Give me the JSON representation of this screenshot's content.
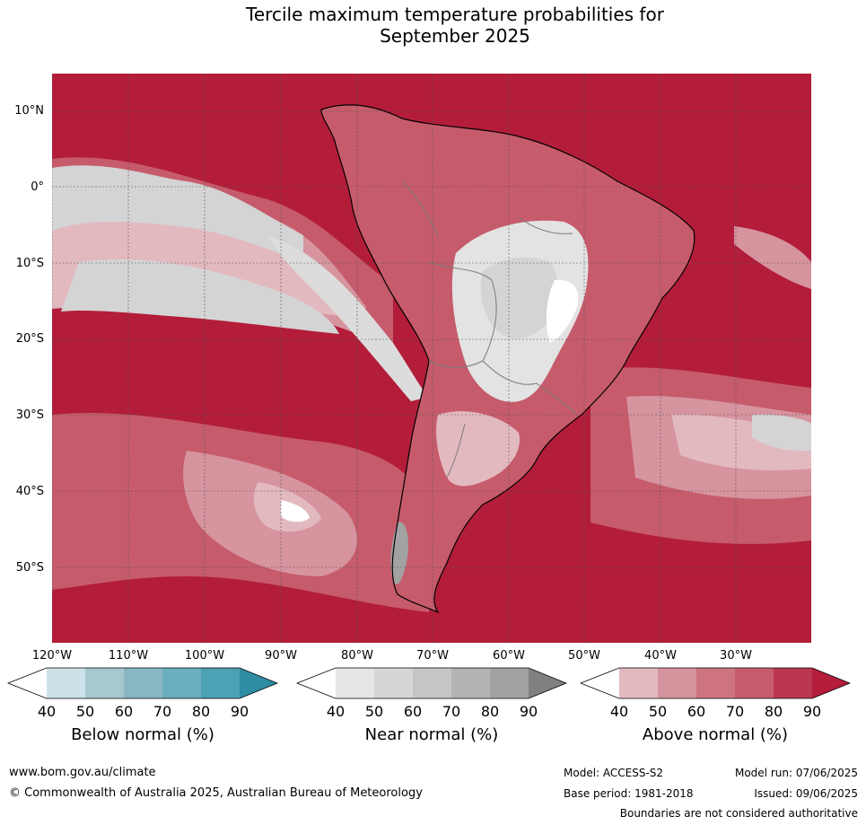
{
  "title": {
    "line1": "Tercile maximum temperature probabilities for",
    "line2": "September 2025"
  },
  "map": {
    "lat_labels": [
      "10°N",
      "0°",
      "10°S",
      "20°S",
      "30°S",
      "40°S",
      "50°S"
    ],
    "lon_labels": [
      "120°W",
      "110°W",
      "100°W",
      "90°W",
      "80°W",
      "70°W",
      "60°W",
      "50°W",
      "40°W",
      "30°W"
    ],
    "colors": {
      "above_normal_dominant": "#b31d3a",
      "near_normal_region": "#e3e3e3",
      "ocean_highlight": "#d4d4d4"
    }
  },
  "legends": [
    {
      "label": "Below normal (%)",
      "ticks": [
        "40",
        "50",
        "60",
        "70",
        "80",
        "90"
      ],
      "colors": [
        "#ffffff",
        "#cce2e8",
        "#a6c8d0",
        "#88b7c3",
        "#6aaebf",
        "#4aa2b4",
        "#2e8ca3"
      ]
    },
    {
      "label": "Near normal (%)",
      "ticks": [
        "40",
        "50",
        "60",
        "70",
        "80",
        "90"
      ],
      "colors": [
        "#ffffff",
        "#e6e6e6",
        "#d6d6d6",
        "#c6c6c6",
        "#b4b4b4",
        "#a2a2a2",
        "#808080"
      ]
    },
    {
      "label": "Above normal (%)",
      "ticks": [
        "40",
        "50",
        "60",
        "70",
        "80",
        "90"
      ],
      "colors": [
        "#ffffff",
        "#e3b9c0",
        "#d6949f",
        "#cd7480",
        "#c65b6c",
        "#ba3650",
        "#b31d3a"
      ]
    }
  ],
  "footer": {
    "website": "www.bom.gov.au/climate",
    "copyright": "© Commonwealth of Australia 2025, Australian Bureau of Meteorology",
    "model": "Model: ACCESS-S2",
    "base_period": "Base period: 1981-2018",
    "model_run": "Model run: 07/06/2025",
    "issued": "Issued: 09/06/2025",
    "disclaimer": "Boundaries are not considered authoritative"
  }
}
